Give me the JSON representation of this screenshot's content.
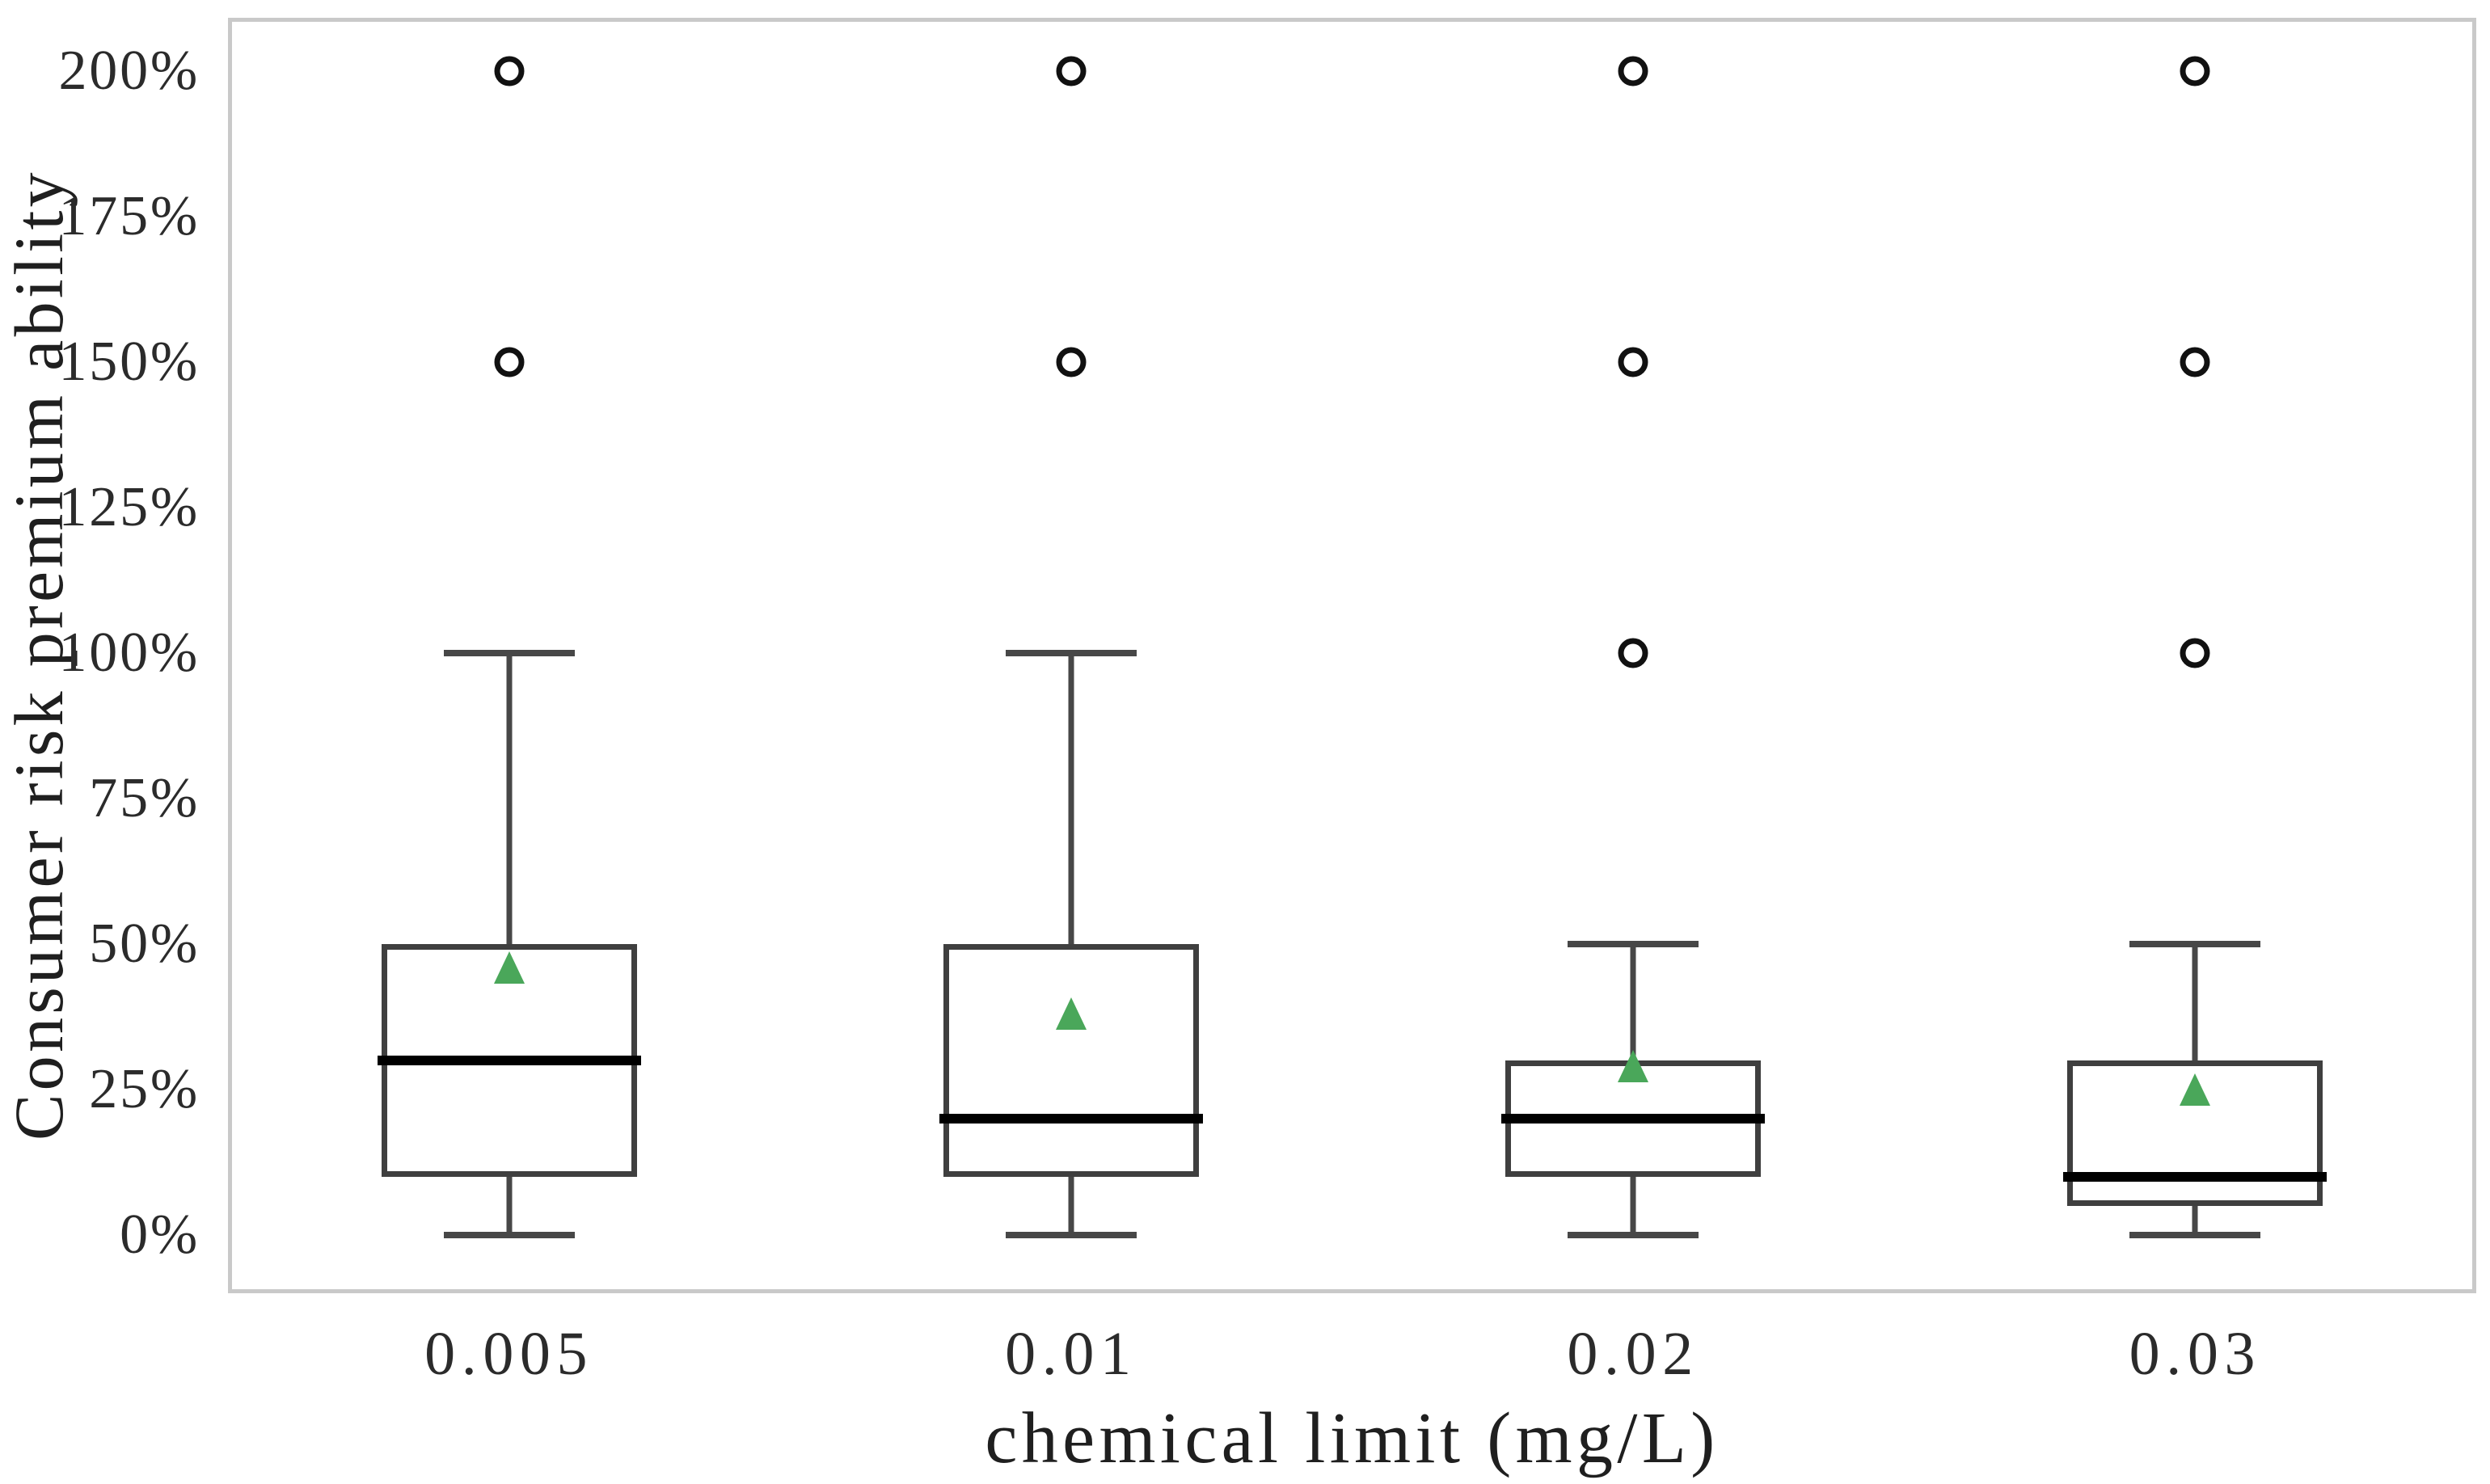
{
  "figure": {
    "background": "#ffffff",
    "frame_color": "#c9c9c9",
    "box_edge_color": "#3f3f3f",
    "median_color": "#000000",
    "whisker_color": "#474747",
    "outlier_color": "#111111",
    "mean_marker_color": "#4aa75a",
    "text_color": "#2b2b2b"
  },
  "chart_data": {
    "type": "boxplot",
    "title": "",
    "xlabel": "chemical limit (mg/L)",
    "ylabel": "Consumer risk premium ability",
    "categories": [
      "0.005",
      "0.01",
      "0.02",
      "0.03"
    ],
    "x_tick_labels": [
      "0.005",
      "0.01",
      "0.02",
      "0.03"
    ],
    "y_ticks": [
      0,
      25,
      50,
      75,
      100,
      125,
      150,
      175,
      200
    ],
    "y_tick_labels": [
      "0%",
      "25%",
      "50%",
      "75%",
      "100%",
      "125%",
      "150%",
      "175%",
      "200%"
    ],
    "ylim": [
      -10,
      209
    ],
    "grid": false,
    "legend": "none",
    "mean_marker": "green-triangle",
    "outlier_marker": "open-circle",
    "series": [
      {
        "category": "0.005",
        "whisker_low": 0,
        "q1": 10,
        "median": 30,
        "q3": 50,
        "whisker_high": 100,
        "mean": 46,
        "outliers": [
          150,
          200
        ]
      },
      {
        "category": "0.01",
        "whisker_low": 0,
        "q1": 10,
        "median": 20,
        "q3": 50,
        "whisker_high": 100,
        "mean": 38,
        "outliers": [
          150,
          200
        ]
      },
      {
        "category": "0.02",
        "whisker_low": 0,
        "q1": 10,
        "median": 20,
        "q3": 30,
        "whisker_high": 50,
        "mean": 29,
        "outliers": [
          100,
          150,
          200
        ]
      },
      {
        "category": "0.03",
        "whisker_low": 0,
        "q1": 5,
        "median": 10,
        "q3": 30,
        "whisker_high": 50,
        "mean": 25,
        "outliers": [
          100,
          150,
          200
        ]
      }
    ]
  }
}
